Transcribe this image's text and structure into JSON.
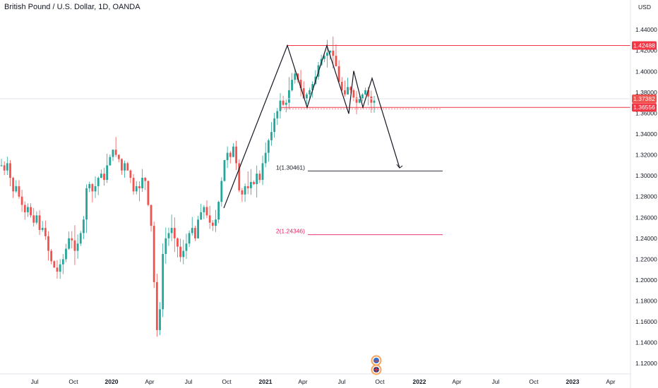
{
  "header": {
    "title": "British Pound / U.S. Dollar, 1D, OANDA",
    "currency": "USD"
  },
  "chart_data": {
    "type": "candlestick",
    "y_axis": {
      "range": [
        1.11,
        1.455
      ],
      "ticks": [
        "1.44000",
        "1.42000",
        "1.40000",
        "1.38000",
        "1.36000",
        "1.34000",
        "1.32000",
        "1.30000",
        "1.28000",
        "1.26000",
        "1.24000",
        "1.22000",
        "1.20000",
        "1.18000",
        "1.16000",
        "1.14000",
        "1.12000"
      ]
    },
    "x_axis": {
      "ticks": [
        {
          "label": "Jul",
          "bold": false
        },
        {
          "label": "Oct",
          "bold": false
        },
        {
          "label": "2020",
          "bold": true
        },
        {
          "label": "Apr",
          "bold": false
        },
        {
          "label": "Jul",
          "bold": false
        },
        {
          "label": "Oct",
          "bold": false
        },
        {
          "label": "2021",
          "bold": true
        },
        {
          "label": "Apr",
          "bold": false
        },
        {
          "label": "Jul",
          "bold": false
        },
        {
          "label": "Oct",
          "bold": false
        },
        {
          "label": "2022",
          "bold": true
        },
        {
          "label": "Apr",
          "bold": false
        },
        {
          "label": "Jul",
          "bold": false
        },
        {
          "label": "Oct",
          "bold": false
        },
        {
          "label": "2023",
          "bold": true
        },
        {
          "label": "Apr",
          "bold": false
        }
      ]
    },
    "price_badges": [
      {
        "value": "1.42488",
        "color": "#f23645"
      },
      {
        "value": "1.37382",
        "color": "#ef5350"
      },
      {
        "value": "1.36556",
        "color": "#f23645"
      }
    ],
    "horizontal_levels": [
      {
        "price": 1.42488,
        "color": "#f23645"
      },
      {
        "price": 1.36556,
        "color": "#f23645"
      },
      {
        "price": 1.37382,
        "color": "#e0e3eb"
      }
    ],
    "targets": [
      {
        "label": "1(1.30461)",
        "price": 1.30461,
        "color": "#131722"
      },
      {
        "label": "2(1.24346)",
        "price": 1.24346,
        "color": "#e91e63"
      }
    ],
    "pattern_prices": [
      1.269,
      1.4249,
      1.3656,
      1.4249,
      1.3595,
      1.4005,
      1.3656,
      1.3935,
      1.3075
    ],
    "close_series": [
      1.31,
      1.305,
      1.312,
      1.298,
      1.285,
      1.29,
      1.28,
      1.272,
      1.265,
      1.27,
      1.262,
      1.255,
      1.262,
      1.248,
      1.25,
      1.242,
      1.228,
      1.218,
      1.212,
      1.208,
      1.215,
      1.22,
      1.23,
      1.24,
      1.238,
      1.228,
      1.235,
      1.245,
      1.258,
      1.288,
      1.292,
      1.285,
      1.29,
      1.298,
      1.302,
      1.296,
      1.31,
      1.318,
      1.325,
      1.32,
      1.316,
      1.305,
      1.312,
      1.305,
      1.298,
      1.285,
      1.29,
      1.288,
      1.298,
      1.295,
      1.272,
      1.252,
      1.198,
      1.152,
      1.172,
      1.225,
      1.24,
      1.245,
      1.25,
      1.24,
      1.232,
      1.222,
      1.228,
      1.235,
      1.245,
      1.25,
      1.24,
      1.258,
      1.265,
      1.27,
      1.262,
      1.255,
      1.252,
      1.258,
      1.275,
      1.295,
      1.315,
      1.322,
      1.318,
      1.328,
      1.312,
      1.286,
      1.282,
      1.29,
      1.288,
      1.294,
      1.292,
      1.302,
      1.296,
      1.312,
      1.322,
      1.334,
      1.342,
      1.355,
      1.362,
      1.372,
      1.368,
      1.37,
      1.382,
      1.392,
      1.398,
      1.392,
      1.384,
      1.374,
      1.378,
      1.382,
      1.388,
      1.395,
      1.406,
      1.412,
      1.415,
      1.418,
      1.42,
      1.415,
      1.405,
      1.39,
      1.382,
      1.378,
      1.385,
      1.382,
      1.375,
      1.37,
      1.374,
      1.378,
      1.382,
      1.376,
      1.37,
      1.372
    ],
    "logos": [
      "us-flag-icon",
      "uk-flag-icon"
    ]
  }
}
